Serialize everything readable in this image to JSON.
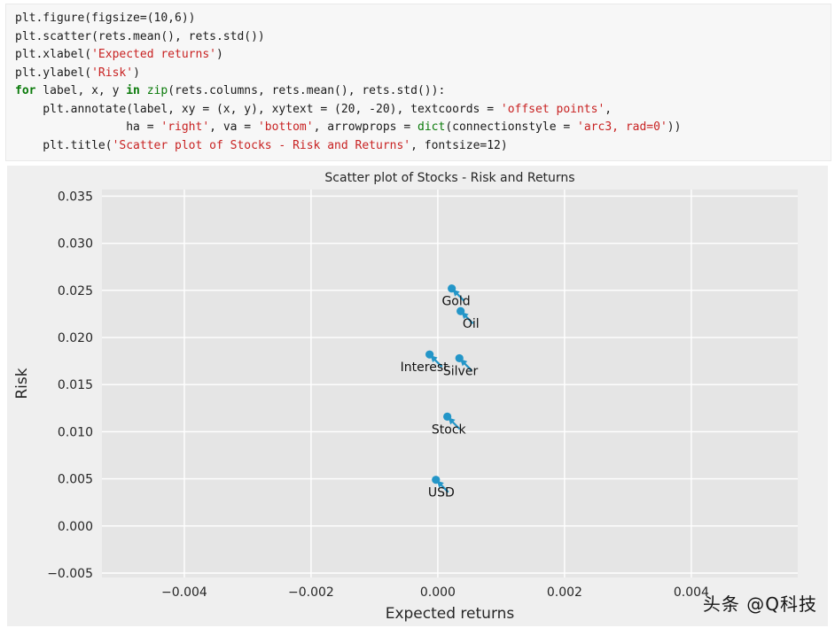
{
  "code": {
    "lines": [
      [
        {
          "t": "p",
          "s": "plt.figure(figsize=(10,6))"
        }
      ],
      [
        {
          "t": "p",
          "s": "plt.scatter(rets.mean(), rets.std())"
        }
      ],
      [
        {
          "t": "p",
          "s": "plt.xlabel("
        },
        {
          "t": "s",
          "s": "'Expected returns'"
        },
        {
          "t": "p",
          "s": ")"
        }
      ],
      [
        {
          "t": "p",
          "s": "plt.ylabel("
        },
        {
          "t": "s",
          "s": "'Risk'"
        },
        {
          "t": "p",
          "s": ")"
        }
      ],
      [
        {
          "t": "k",
          "s": "for"
        },
        {
          "t": "p",
          "s": " label, x, y "
        },
        {
          "t": "k",
          "s": "in"
        },
        {
          "t": "p",
          "s": " "
        },
        {
          "t": "b",
          "s": "zip"
        },
        {
          "t": "p",
          "s": "(rets.columns, rets.mean(), rets.std()):"
        }
      ],
      [
        {
          "t": "p",
          "s": "    plt.annotate(label, xy = (x, y), xytext = (20, -20), textcoords = "
        },
        {
          "t": "s",
          "s": "'offset points'"
        },
        {
          "t": "p",
          "s": ","
        }
      ],
      [
        {
          "t": "p",
          "s": "                ha = "
        },
        {
          "t": "s",
          "s": "'right'"
        },
        {
          "t": "p",
          "s": ", va = "
        },
        {
          "t": "s",
          "s": "'bottom'"
        },
        {
          "t": "p",
          "s": ", arrowprops = "
        },
        {
          "t": "b",
          "s": "dict"
        },
        {
          "t": "p",
          "s": "(connectionstyle = "
        },
        {
          "t": "s",
          "s": "'arc3, rad=0'"
        },
        {
          "t": "p",
          "s": "))"
        }
      ],
      [
        {
          "t": "p",
          "s": "    plt.title("
        },
        {
          "t": "s",
          "s": "'Scatter plot of Stocks - Risk and Returns'"
        },
        {
          "t": "p",
          "s": ", fontsize=12)"
        }
      ]
    ]
  },
  "chart_data": {
    "type": "scatter",
    "title": "Scatter plot of Stocks - Risk and Returns",
    "xlabel": "Expected returns",
    "ylabel": "Risk",
    "xlim": [
      -0.0053,
      0.00568
    ],
    "ylim": [
      -0.00547,
      0.0357
    ],
    "xticks": [
      -0.004,
      -0.002,
      0.0,
      0.002,
      0.004
    ],
    "xtick_labels": [
      "−0.004",
      "−0.002",
      "0.000",
      "0.002",
      "0.004"
    ],
    "yticks": [
      -0.005,
      0.0,
      0.005,
      0.01,
      0.015,
      0.02,
      0.025,
      0.03,
      0.035
    ],
    "ytick_labels": [
      "−0.005",
      "0.000",
      "0.005",
      "0.010",
      "0.015",
      "0.020",
      "0.025",
      "0.030",
      "0.035"
    ],
    "grid": true,
    "legend": "none",
    "annotation_offset_points": [
      20,
      -20
    ],
    "point_color": "#2496c8",
    "plot_bg": "#e5e5e5",
    "figure_bg": "#efefef",
    "points": [
      {
        "label": "Gold",
        "x": 0.00022,
        "y": 0.0252
      },
      {
        "label": "Oil",
        "x": 0.00036,
        "y": 0.0228
      },
      {
        "label": "Interest",
        "x": -0.00013,
        "y": 0.0182
      },
      {
        "label": "Silver",
        "x": 0.00034,
        "y": 0.0178
      },
      {
        "label": "Stock",
        "x": 0.00015,
        "y": 0.0116
      },
      {
        "label": "USD",
        "x": -3e-05,
        "y": 0.0049
      }
    ]
  },
  "watermark": {
    "text": "头条 @Q科技"
  }
}
